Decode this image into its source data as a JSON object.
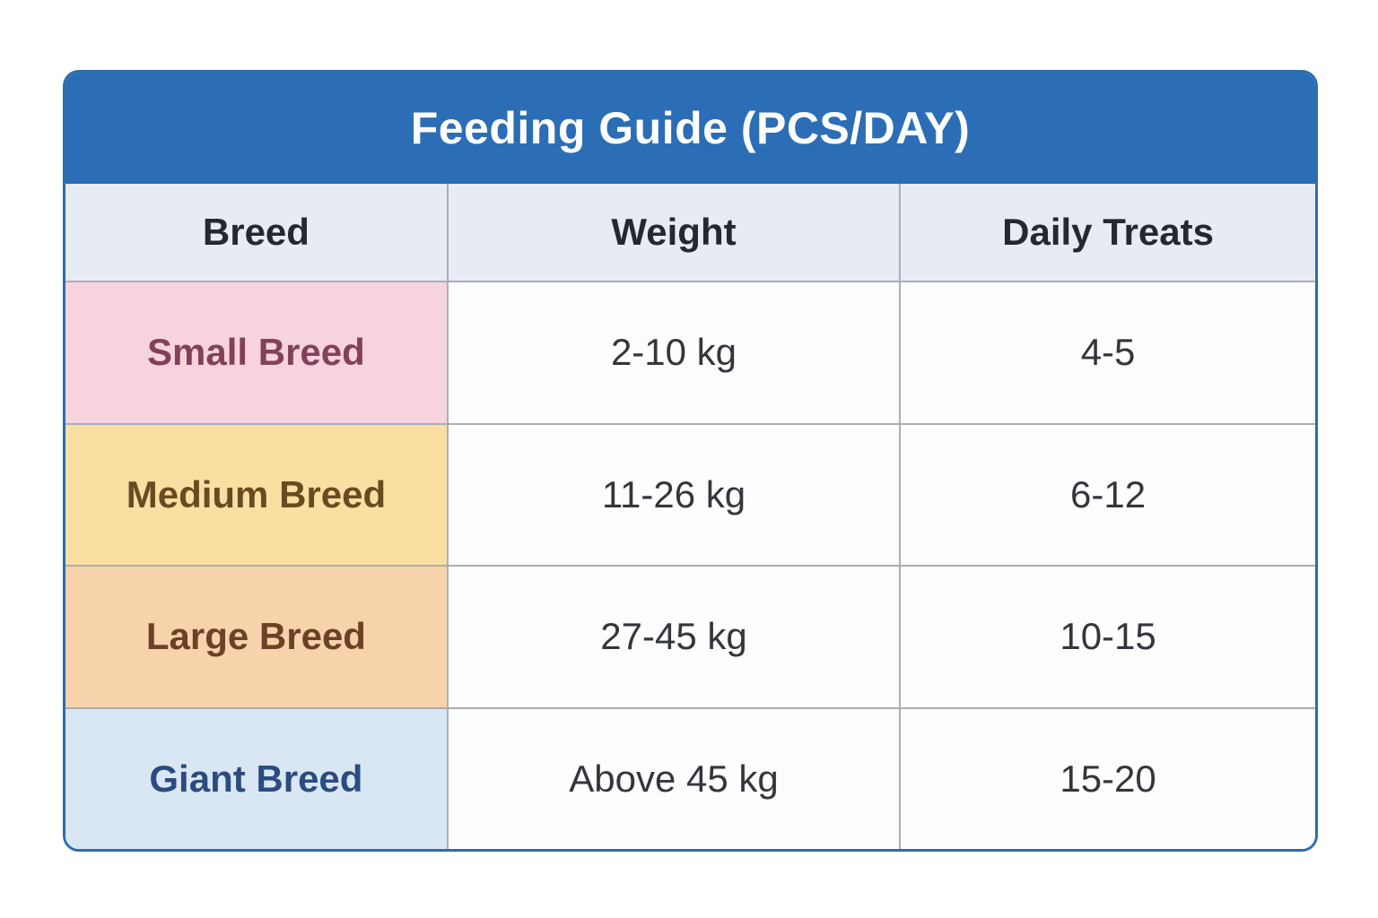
{
  "table": {
    "title": "Feeding Guide (PCS/DAY)",
    "title_bg": "#2b6eb6",
    "title_color": "#ffffff",
    "border_color": "#2f6cae",
    "grid_color": "#a9aeb6",
    "header_bg": "#e7ebf4",
    "header_text_color": "#25282e",
    "cell_bg": "#fdfdfe",
    "cell_text_color": "#33363c",
    "columns": [
      "Breed",
      "Weight",
      "Daily Treats"
    ],
    "rows": [
      {
        "breed": "Small Breed",
        "weight": "2-10 kg",
        "treats": "4-5",
        "label_bg": "#f7d3de",
        "label_color": "#82415a"
      },
      {
        "breed": "Medium Breed",
        "weight": "11-26 kg",
        "treats": "6-12",
        "label_bg": "#fadfa2",
        "label_color": "#6b4a23"
      },
      {
        "breed": "Large Breed",
        "weight": "27-45 kg",
        "treats": "10-15",
        "label_bg": "#f7d3ac",
        "label_color": "#6b4226"
      },
      {
        "breed": "Giant Breed",
        "weight": "Above 45 kg",
        "treats": "15-20",
        "label_bg": "#d9e7f5",
        "label_color": "#2b4c7e"
      }
    ]
  },
  "chart_data": {
    "type": "table",
    "title": "Feeding Guide (PCS/DAY)",
    "columns": [
      "Breed",
      "Weight",
      "Daily Treats"
    ],
    "rows": [
      [
        "Small Breed",
        "2-10 kg",
        "4-5"
      ],
      [
        "Medium Breed",
        "11-26 kg",
        "6-12"
      ],
      [
        "Large Breed",
        "27-45 kg",
        "10-15"
      ],
      [
        "Giant Breed",
        "Above 45 kg",
        "15-20"
      ]
    ]
  }
}
